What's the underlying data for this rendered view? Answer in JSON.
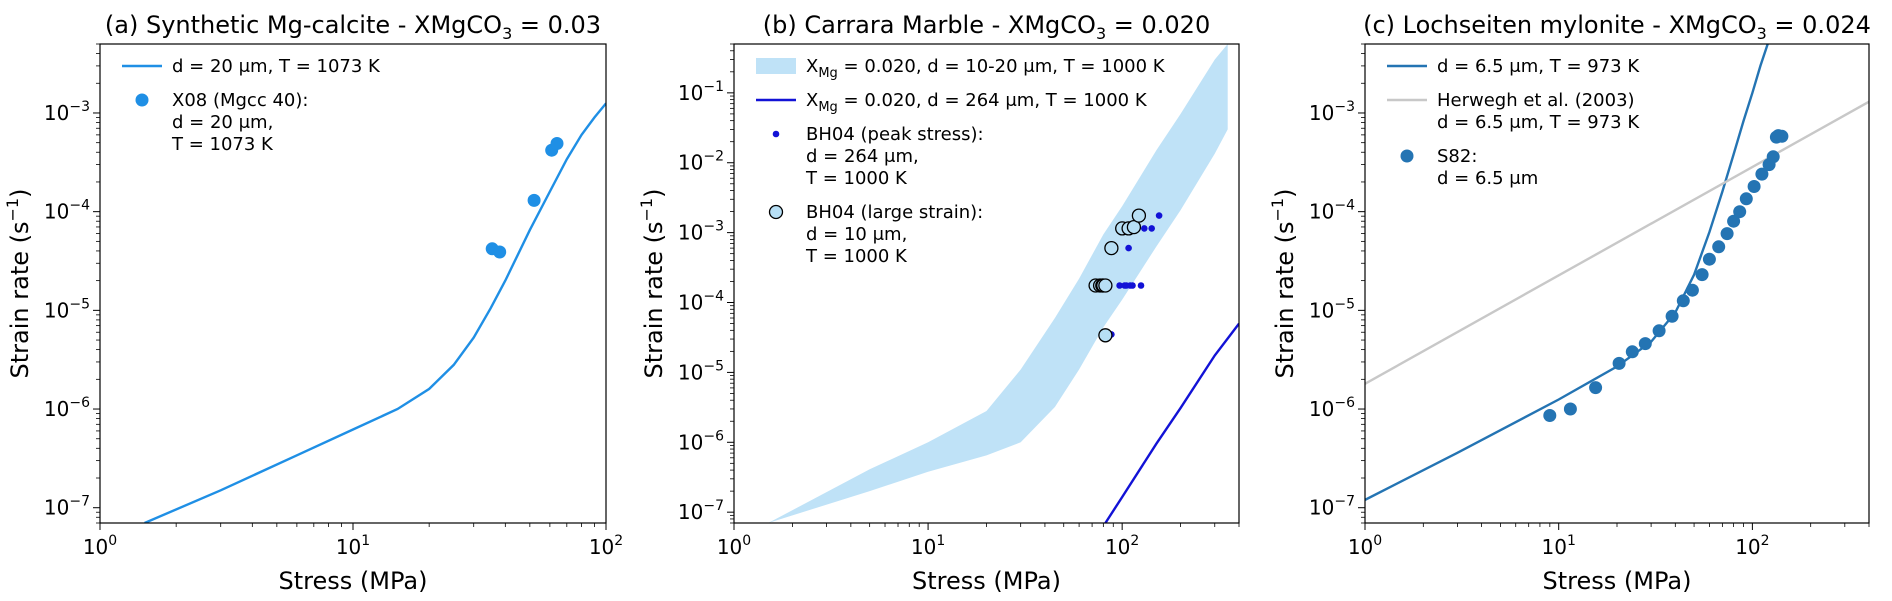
{
  "chart_data": [
    {
      "type": "line",
      "panel": "a",
      "title": "(a) Synthetic Mg-calcite - XMgCO",
      "title_sub": "3",
      "title_suffix": " = 0.03",
      "xlabel": "Stress (MPa)",
      "ylabel": "Strain rate (s",
      "ylabel_sup": "−1",
      "ylabel_end": ")",
      "x_scale": "log",
      "y_scale": "log",
      "xlim": [
        1,
        100
      ],
      "ylim": [
        7e-08,
        0.005
      ],
      "x_ticks": [
        1,
        10,
        100
      ],
      "y_ticks": [
        1e-07,
        1e-06,
        1e-05,
        0.0001,
        0.001
      ],
      "legend_placement": "top-left",
      "series": [
        {
          "name": "d = 20 μm, T = 1073 K",
          "kind": "line",
          "color": "#1f8fe5",
          "x": [
            1.5,
            3,
            6,
            10,
            15,
            20,
            25,
            30,
            35,
            40,
            50,
            60,
            70,
            80,
            90,
            100
          ],
          "y": [
            7e-08,
            1.5e-07,
            3.4e-07,
            6.2e-07,
            1e-06,
            1.6e-06,
            2.8e-06,
            5.3e-06,
            1.05e-05,
            2e-05,
            6.5e-05,
            0.00016,
            0.00034,
            0.0006,
            0.0009,
            0.00125
          ]
        },
        {
          "name": "X08 (Mgcc 40):",
          "name_lines": [
            "d = 20 μm,",
            "T = 1073 K"
          ],
          "kind": "scatter",
          "color": "#1f8fe5",
          "x": [
            35.5,
            38,
            52,
            61,
            64
          ],
          "y": [
            4.2e-05,
            3.9e-05,
            0.00013,
            0.00042,
            0.00049
          ]
        }
      ]
    },
    {
      "type": "line",
      "panel": "b",
      "title": "(b) Carrara Marble - XMgCO",
      "title_sub": "3",
      "title_suffix": " = 0.020",
      "xlabel": "Stress (MPa)",
      "ylabel": "Strain rate (s",
      "ylabel_sup": "−1",
      "ylabel_end": ")",
      "x_scale": "log",
      "y_scale": "log",
      "xlim": [
        1,
        400
      ],
      "ylim": [
        7e-08,
        0.5
      ],
      "x_ticks": [
        1,
        10,
        100
      ],
      "y_ticks": [
        1e-07,
        1e-06,
        1e-05,
        0.0001,
        0.001,
        0.01,
        0.1
      ],
      "legend_placement": "top-left",
      "series": [
        {
          "name": "X",
          "name_sub": "Mg",
          "name_suffix": " = 0.020, d = 10-20 μm, T = 1000 K",
          "kind": "band",
          "color": "#bfe2f7",
          "x": [
            1.5,
            5,
            10,
            20,
            30,
            45,
            60,
            80,
            100,
            150,
            200,
            300,
            350
          ],
          "y_low": [
            7e-08,
            2e-07,
            3.8e-07,
            6.5e-07,
            1e-06,
            3.2e-06,
            1.1e-05,
            4.4e-05,
            0.00011,
            0.00063,
            0.0021,
            0.0135,
            0.03
          ],
          "y_high": [
            7e-08,
            4.1e-07,
            1e-06,
            2.8e-06,
            1.1e-05,
            6e-05,
            0.00022,
            0.00094,
            0.0024,
            0.015,
            0.05,
            0.3,
            0.5
          ]
        },
        {
          "name": "X",
          "name_sub": "Mg",
          "name_suffix": " = 0.020, d = 264 μm, T = 1000 K",
          "kind": "line",
          "color": "#1212d6",
          "x": [
            82,
            100,
            150,
            200,
            300,
            400
          ],
          "y": [
            7e-08,
            1.65e-07,
            9.5e-07,
            3.1e-06,
            1.75e-05,
            5e-05
          ]
        },
        {
          "name": "BH04 (peak stress):",
          "name_lines": [
            "d = 264 μm,",
            "T = 1000 K"
          ],
          "kind": "scatter",
          "color": "#1212d6",
          "x": [
            88,
            108,
            118,
            120,
            130,
            142,
            155,
            85,
            97,
            103,
            105,
            110,
            113,
            125
          ],
          "y": [
            3.5e-05,
            0.0006,
            0.0012,
            0.00115,
            0.00115,
            0.00115,
            0.00175,
            0.000175,
            0.000175,
            0.000175,
            0.000175,
            0.000175,
            0.000175,
            0.000175
          ]
        },
        {
          "name": "BH04 (large strain):",
          "name_lines": [
            "d = 10 μm,",
            "T = 1000 K"
          ],
          "kind": "scatter-outlined",
          "color": "#b7dff5",
          "x": [
            82,
            88,
            100,
            108,
            115,
            122,
            73,
            77,
            79,
            80,
            82
          ],
          "y": [
            3.4e-05,
            0.0006,
            0.00115,
            0.00115,
            0.0012,
            0.00175,
            0.000175,
            0.000175,
            0.000175,
            0.000175,
            0.000175
          ]
        }
      ]
    },
    {
      "type": "line",
      "panel": "c",
      "title": "(c) Lochseiten mylonite - XMgCO",
      "title_sub": "3",
      "title_suffix": " = 0.024",
      "xlabel": "Stress (MPa)",
      "ylabel": "Strain rate (s",
      "ylabel_sup": "−1",
      "ylabel_end": ")",
      "x_scale": "log",
      "y_scale": "log",
      "xlim": [
        1,
        400
      ],
      "ylim": [
        7e-08,
        0.005
      ],
      "x_ticks": [
        1,
        10,
        100
      ],
      "y_ticks": [
        1e-07,
        1e-06,
        1e-05,
        0.0001,
        0.001
      ],
      "legend_placement": "top-left",
      "series": [
        {
          "name": "d = 6.5 μm, T = 973 K",
          "kind": "line",
          "color": "#2474b3",
          "x": [
            1,
            3,
            10,
            20,
            30,
            40,
            50,
            60,
            70,
            80,
            90,
            100,
            110,
            120
          ],
          "y": [
            1.2e-07,
            3.6e-07,
            1.25e-06,
            2.7e-06,
            4.8e-06,
            9.5e-06,
            2.3e-05,
            6.2e-05,
            0.00016,
            0.00038,
            0.00083,
            0.0016,
            0.003,
            0.005
          ]
        },
        {
          "name": "Herwegh et al. (2003)",
          "name_lines": [
            "d = 6.5 μm, T = 973 K"
          ],
          "kind": "line",
          "color": "#c8c8c8",
          "x": [
            1,
            400
          ],
          "y": [
            1.8e-06,
            0.0013
          ]
        },
        {
          "name": "S82:",
          "name_lines": [
            "d = 6.5 μm"
          ],
          "kind": "scatter",
          "color": "#2474b3",
          "x": [
            9,
            11.5,
            15.5,
            20.5,
            24,
            28,
            33,
            38.5,
            44,
            49,
            55,
            60,
            67,
            74,
            80,
            86,
            93,
            102,
            112,
            122,
            128,
            133,
            136,
            142
          ],
          "y": [
            8.6e-07,
            1e-06,
            1.65e-06,
            2.9e-06,
            3.8e-06,
            4.6e-06,
            6.2e-06,
            8.7e-06,
            1.25e-05,
            1.6e-05,
            2.3e-05,
            3.3e-05,
            4.4e-05,
            6e-05,
            8e-05,
            0.0001,
            0.000135,
            0.00018,
            0.00024,
            0.0003,
            0.00036,
            0.00057,
            0.00059,
            0.00058
          ]
        }
      ]
    }
  ]
}
